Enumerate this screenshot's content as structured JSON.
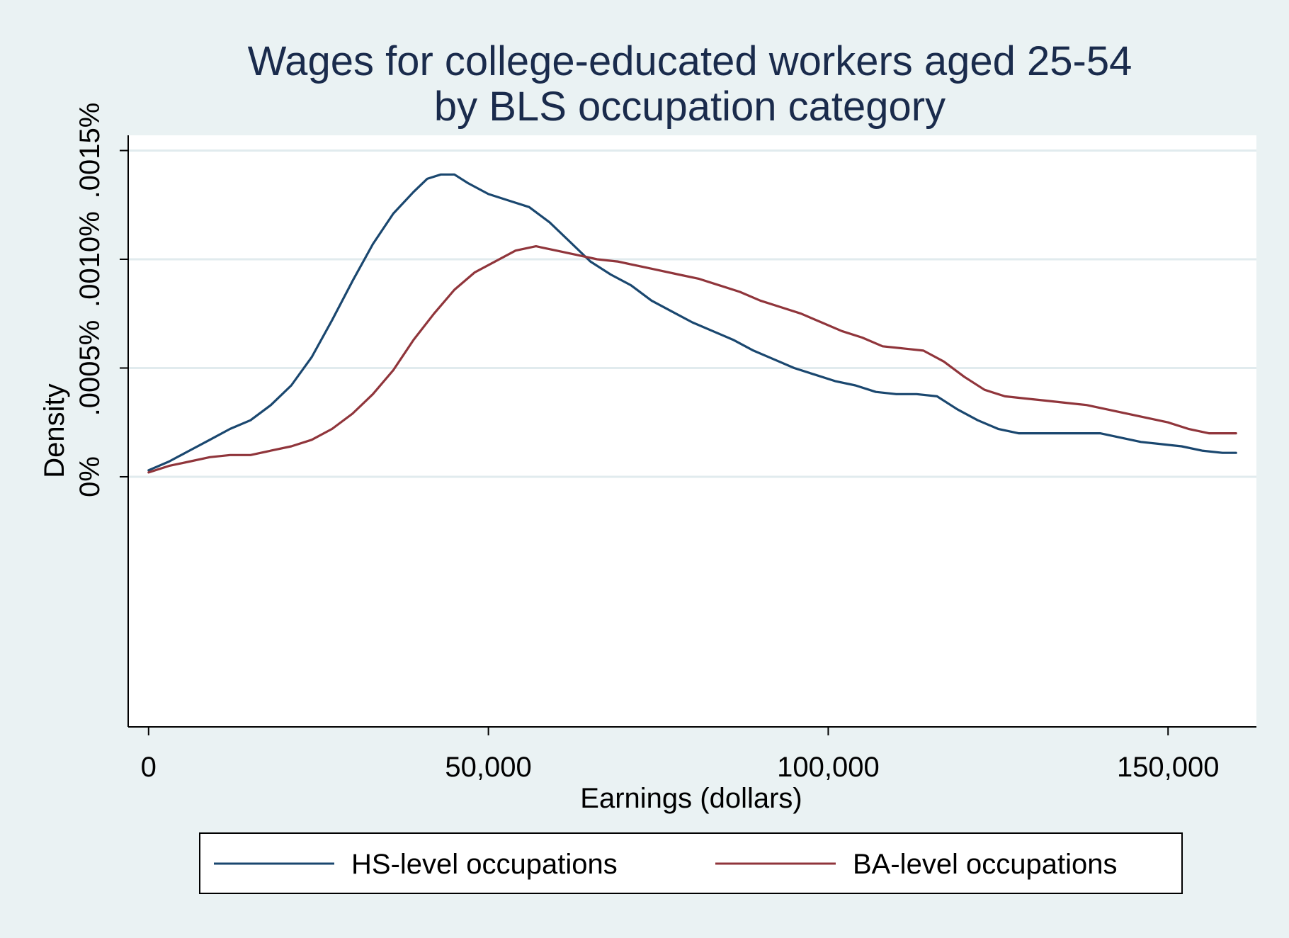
{
  "chart_data": {
    "type": "line",
    "title": [
      "Wages for college-educated workers aged 25-54",
      "by BLS occupation category"
    ],
    "xlabel": "Earnings (dollars)",
    "ylabel": "Density",
    "xlim": [
      -3000,
      163000
    ],
    "ylim": [
      -1.15e-05,
      1.57e-05
    ],
    "x_ticks": [
      0,
      50000,
      100000,
      150000
    ],
    "x_tick_labels": [
      "0",
      "50,000",
      "100,000",
      "150,000"
    ],
    "y_ticks": [
      0,
      5e-06,
      1e-05,
      1.5e-05
    ],
    "y_tick_labels": [
      "0%",
      ".0005%",
      ".0010%",
      ".0015%"
    ],
    "grid": true,
    "legend_position": "bottom",
    "colors": {
      "background": "#eaf2f3",
      "plot_background": "#ffffff",
      "grid": "#e1ebee",
      "axis": "#000000",
      "title": "#1a2b4c"
    },
    "series": [
      {
        "name": "HS-level occupations",
        "color": "#1a476f",
        "x": [
          0,
          3000,
          6000,
          9000,
          12000,
          15000,
          18000,
          21000,
          24000,
          27000,
          30000,
          33000,
          36000,
          39000,
          41000,
          43000,
          45000,
          47000,
          50000,
          53000,
          56000,
          59000,
          62000,
          65000,
          68000,
          71000,
          74000,
          77000,
          80000,
          83000,
          86000,
          89000,
          92000,
          95000,
          98000,
          101000,
          104000,
          107000,
          110000,
          113000,
          116000,
          119000,
          122000,
          125000,
          128000,
          131000,
          134000,
          137000,
          140000,
          143000,
          146000,
          149000,
          152000,
          155000,
          158000,
          160000
        ],
        "y": [
          3e-07,
          7e-07,
          1.2e-06,
          1.7e-06,
          2.2e-06,
          2.6e-06,
          3.3e-06,
          4.2e-06,
          5.5e-06,
          7.2e-06,
          9e-06,
          1.07e-05,
          1.21e-05,
          1.31e-05,
          1.37e-05,
          1.39e-05,
          1.39e-05,
          1.35e-05,
          1.3e-05,
          1.27e-05,
          1.24e-05,
          1.17e-05,
          1.08e-05,
          9.9e-06,
          9.3e-06,
          8.8e-06,
          8.1e-06,
          7.6e-06,
          7.1e-06,
          6.7e-06,
          6.3e-06,
          5.8e-06,
          5.4e-06,
          5e-06,
          4.7e-06,
          4.4e-06,
          4.2e-06,
          3.9e-06,
          3.8e-06,
          3.8e-06,
          3.7e-06,
          3.1e-06,
          2.6e-06,
          2.2e-06,
          2e-06,
          2e-06,
          2e-06,
          2e-06,
          2e-06,
          1.8e-06,
          1.6e-06,
          1.5e-06,
          1.4e-06,
          1.2e-06,
          1.1e-06,
          1.1e-06
        ]
      },
      {
        "name": "BA-level occupations",
        "color": "#90353b",
        "x": [
          0,
          3000,
          6000,
          9000,
          12000,
          15000,
          18000,
          21000,
          24000,
          27000,
          30000,
          33000,
          36000,
          39000,
          42000,
          45000,
          48000,
          51000,
          54000,
          57000,
          60000,
          63000,
          66000,
          69000,
          72000,
          75000,
          78000,
          81000,
          84000,
          87000,
          90000,
          93000,
          96000,
          99000,
          102000,
          105000,
          108000,
          111000,
          114000,
          117000,
          120000,
          123000,
          126000,
          129000,
          132000,
          135000,
          138000,
          141000,
          144000,
          147000,
          150000,
          153000,
          156000,
          159000,
          160000
        ],
        "y": [
          2e-07,
          5e-07,
          7e-07,
          9e-07,
          1e-06,
          1e-06,
          1.2e-06,
          1.4e-06,
          1.7e-06,
          2.2e-06,
          2.9e-06,
          3.8e-06,
          4.9e-06,
          6.3e-06,
          7.5e-06,
          8.6e-06,
          9.4e-06,
          9.9e-06,
          1.04e-05,
          1.06e-05,
          1.04e-05,
          1.02e-05,
          1e-05,
          9.9e-06,
          9.7e-06,
          9.5e-06,
          9.3e-06,
          9.1e-06,
          8.8e-06,
          8.5e-06,
          8.1e-06,
          7.8e-06,
          7.5e-06,
          7.1e-06,
          6.7e-06,
          6.4e-06,
          6e-06,
          5.9e-06,
          5.8e-06,
          5.3e-06,
          4.6e-06,
          4e-06,
          3.7e-06,
          3.6e-06,
          3.5e-06,
          3.4e-06,
          3.3e-06,
          3.1e-06,
          2.9e-06,
          2.7e-06,
          2.5e-06,
          2.2e-06,
          2e-06,
          2e-06,
          2e-06
        ]
      }
    ]
  }
}
